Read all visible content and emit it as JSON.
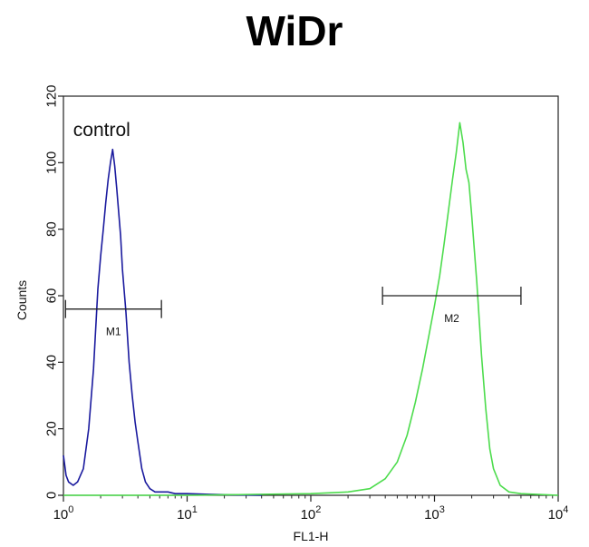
{
  "chart_data": {
    "type": "line",
    "title": "WiDr",
    "xlabel": "FL1-H",
    "ylabel": "Counts",
    "x_scale": "log",
    "xlim": [
      1,
      10000
    ],
    "ylim": [
      0,
      120
    ],
    "x_ticks": [
      {
        "value": 1,
        "base": "10",
        "exp": "0"
      },
      {
        "value": 10,
        "base": "10",
        "exp": "1"
      },
      {
        "value": 100,
        "base": "10",
        "exp": "2"
      },
      {
        "value": 1000,
        "base": "10",
        "exp": "3"
      },
      {
        "value": 10000,
        "base": "10",
        "exp": "4"
      }
    ],
    "y_ticks": [
      0,
      20,
      40,
      60,
      80,
      100,
      120
    ],
    "grid": false,
    "annotations": [
      {
        "text": "control",
        "x": 1.2,
        "y": 108
      }
    ],
    "series": [
      {
        "color": "#1a1a9e",
        "x": [
          1,
          1.05,
          1.1,
          1.2,
          1.3,
          1.45,
          1.6,
          1.75,
          1.9,
          2.0,
          2.1,
          2.2,
          2.3,
          2.4,
          2.5,
          2.6,
          2.7,
          2.8,
          2.9,
          3.0,
          3.2,
          3.4,
          3.6,
          3.8,
          4.0,
          4.3,
          4.6,
          5.0,
          5.5,
          6.0,
          7.0,
          8.0,
          10,
          15,
          20,
          40
        ],
        "y": [
          12,
          6,
          4,
          3,
          4,
          8,
          20,
          38,
          62,
          72,
          80,
          88,
          95,
          100,
          104,
          99,
          92,
          85,
          78,
          68,
          55,
          40,
          30,
          22,
          16,
          8,
          4,
          2,
          1,
          1,
          1,
          0.5,
          0.5,
          0.3,
          0.2,
          0
        ]
      },
      {
        "color": "#4ddc4d",
        "x": [
          1,
          10,
          100,
          200,
          300,
          400,
          500,
          600,
          700,
          800,
          900,
          1000,
          1100,
          1200,
          1300,
          1400,
          1500,
          1600,
          1700,
          1800,
          1900,
          2000,
          2200,
          2400,
          2600,
          2800,
          3000,
          3400,
          4000,
          5000,
          10000
        ],
        "y": [
          0,
          0,
          0.5,
          1,
          2,
          5,
          10,
          18,
          28,
          38,
          48,
          57,
          66,
          76,
          86,
          95,
          103,
          112,
          106,
          98,
          94,
          84,
          64,
          42,
          26,
          14,
          8,
          3,
          1,
          0.5,
          0
        ]
      }
    ],
    "markers": [
      {
        "label": "M1",
        "x_start": 1.04,
        "x_end": 6.2,
        "y": 56
      },
      {
        "label": "M2",
        "x_start": 380,
        "x_end": 5000,
        "y": 60
      }
    ]
  }
}
